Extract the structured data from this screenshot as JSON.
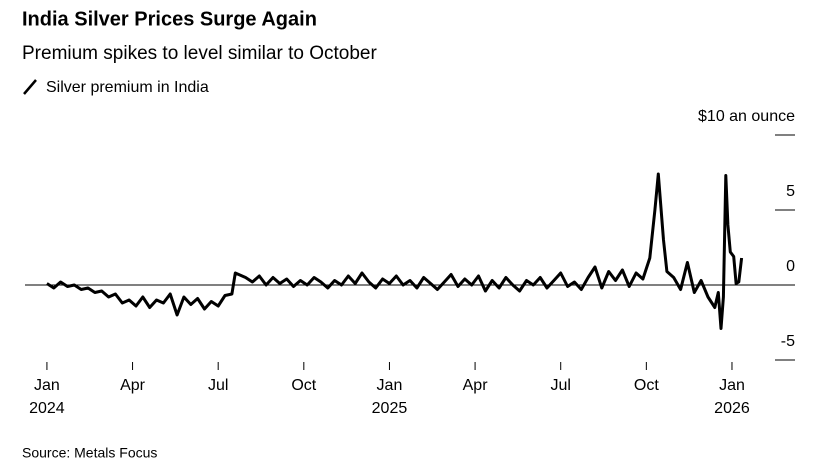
{
  "chart_data": {
    "type": "line",
    "title": "India Silver Prices Surge Again",
    "subtitle": "Premium spikes to level similar to October",
    "source": "Source: Metals Focus",
    "xlim": [
      2023.936,
      2026.184
    ],
    "ylim": [
      -5,
      10
    ],
    "yticks": [
      {
        "value": 10,
        "label": "$10 an ounce"
      },
      5,
      0,
      -5
    ],
    "xticks": [
      {
        "value": 2024.0,
        "label": "Jan",
        "year": "2024"
      },
      {
        "value": 2024.25,
        "label": "Apr"
      },
      {
        "value": 2024.5,
        "label": "Jul"
      },
      {
        "value": 2024.75,
        "label": "Oct"
      },
      {
        "value": 2025.0,
        "label": "Jan",
        "year": "2025"
      },
      {
        "value": 2025.25,
        "label": "Apr"
      },
      {
        "value": 2025.5,
        "label": "Jul"
      },
      {
        "value": 2025.75,
        "label": "Oct"
      },
      {
        "value": 2026.0,
        "label": "Jan",
        "year": "2026"
      }
    ],
    "x": [
      2024.0,
      2024.02,
      2024.04,
      2024.06,
      2024.08,
      2024.1,
      2024.12,
      2024.14,
      2024.16,
      2024.18,
      2024.2,
      2024.22,
      2024.24,
      2024.26,
      2024.28,
      2024.3,
      2024.32,
      2024.34,
      2024.36,
      2024.38,
      2024.4,
      2024.42,
      2024.44,
      2024.46,
      2024.48,
      2024.5,
      2024.52,
      2024.54,
      2024.55,
      2024.58,
      2024.6,
      2024.62,
      2024.64,
      2024.66,
      2024.68,
      2024.7,
      2024.72,
      2024.74,
      2024.76,
      2024.78,
      2024.8,
      2024.82,
      2024.84,
      2024.86,
      2024.88,
      2024.9,
      2024.92,
      2024.94,
      2024.96,
      2024.98,
      2025.0,
      2025.02,
      2025.04,
      2025.06,
      2025.08,
      2025.1,
      2025.12,
      2025.14,
      2025.16,
      2025.18,
      2025.2,
      2025.22,
      2025.24,
      2025.26,
      2025.28,
      2025.3,
      2025.32,
      2025.34,
      2025.36,
      2025.38,
      2025.4,
      2025.42,
      2025.44,
      2025.46,
      2025.48,
      2025.5,
      2025.52,
      2025.54,
      2025.56,
      2025.58,
      2025.6,
      2025.62,
      2025.64,
      2025.66,
      2025.68,
      2025.7,
      2025.72,
      2025.74,
      2025.76,
      2025.775,
      2025.785,
      2025.8,
      2025.81,
      2025.83,
      2025.85,
      2025.87,
      2025.89,
      2025.91,
      2025.93,
      2025.95,
      2025.96,
      2025.968,
      2025.975,
      2025.982,
      2025.988,
      2025.995,
      2026.005,
      2026.012,
      2026.02,
      2026.028
    ],
    "series": [
      {
        "name": "Silver premium in India",
        "color": "#000000",
        "values": [
          0.1,
          -0.2,
          0.2,
          -0.1,
          0.0,
          -0.3,
          -0.2,
          -0.5,
          -0.4,
          -0.8,
          -0.6,
          -1.2,
          -1.0,
          -1.4,
          -0.8,
          -1.5,
          -1.0,
          -1.2,
          -0.6,
          -2.0,
          -0.8,
          -1.3,
          -0.9,
          -1.6,
          -1.1,
          -1.4,
          -0.7,
          -0.6,
          0.8,
          0.5,
          0.2,
          0.6,
          0.0,
          0.5,
          0.1,
          0.4,
          -0.1,
          0.3,
          0.0,
          0.5,
          0.2,
          -0.2,
          0.3,
          0.0,
          0.6,
          0.1,
          0.8,
          0.2,
          -0.2,
          0.4,
          0.1,
          0.6,
          0.0,
          0.3,
          -0.2,
          0.5,
          0.1,
          -0.3,
          0.2,
          0.7,
          -0.1,
          0.4,
          0.0,
          0.6,
          -0.4,
          0.3,
          -0.2,
          0.5,
          0.0,
          -0.4,
          0.3,
          0.0,
          0.5,
          -0.2,
          0.3,
          0.8,
          -0.1,
          0.2,
          -0.3,
          0.5,
          1.2,
          -0.2,
          0.9,
          0.3,
          1.0,
          -0.1,
          0.8,
          0.4,
          1.8,
          5.0,
          7.4,
          3.0,
          0.9,
          0.5,
          -0.3,
          1.5,
          -0.5,
          0.3,
          -0.8,
          -1.5,
          -0.5,
          -2.9,
          -0.8,
          7.3,
          4.0,
          2.2,
          1.9,
          0.1,
          0.2,
          1.8
        ]
      }
    ]
  }
}
